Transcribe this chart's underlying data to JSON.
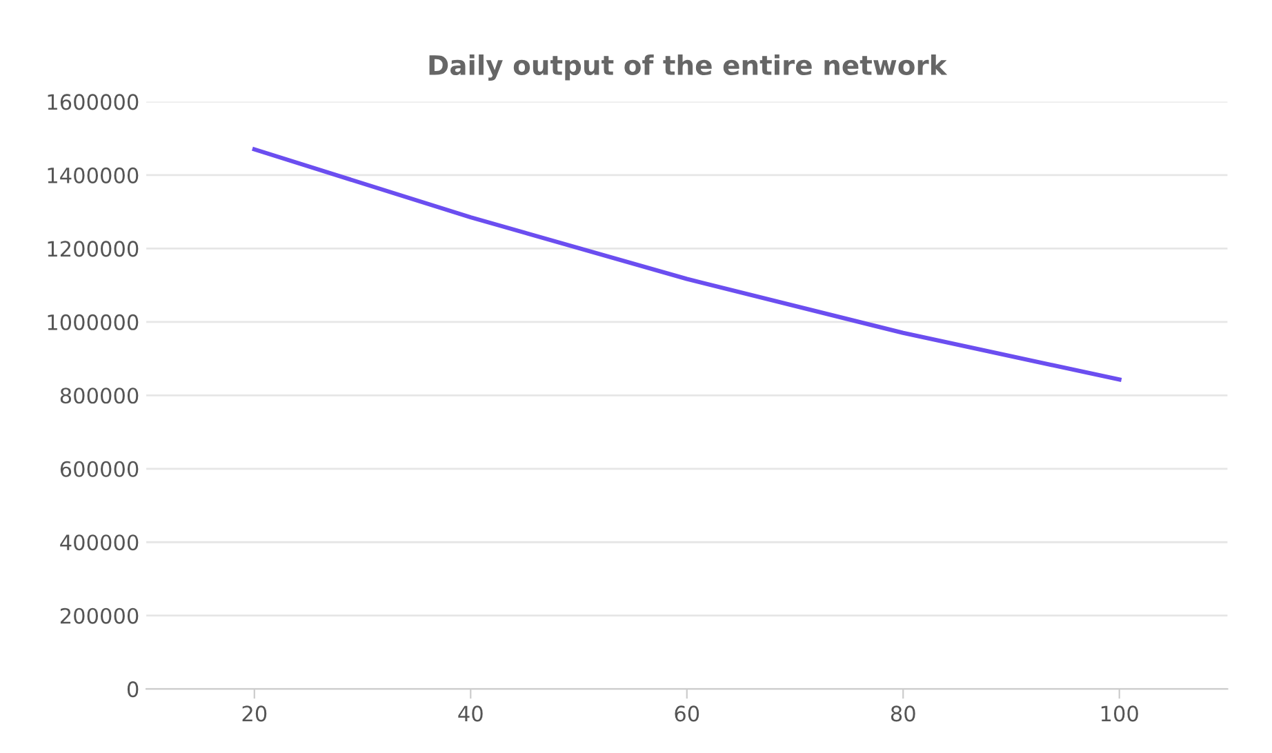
{
  "chart_data": {
    "type": "line",
    "title": "Daily output of the entire network",
    "categories": [
      "20",
      "40",
      "60",
      "80",
      "100"
    ],
    "series": [
      {
        "color": "#6b4ef0",
        "values": [
          1470000,
          1285000,
          1117000,
          970000,
          843000
        ]
      }
    ],
    "ylim": [
      0,
      1600000
    ],
    "yticks": [
      0,
      200000,
      400000,
      600000,
      800000,
      1000000,
      1200000,
      1400000,
      1600000
    ],
    "grid": "y",
    "marker": "none",
    "line_style": "solid"
  }
}
